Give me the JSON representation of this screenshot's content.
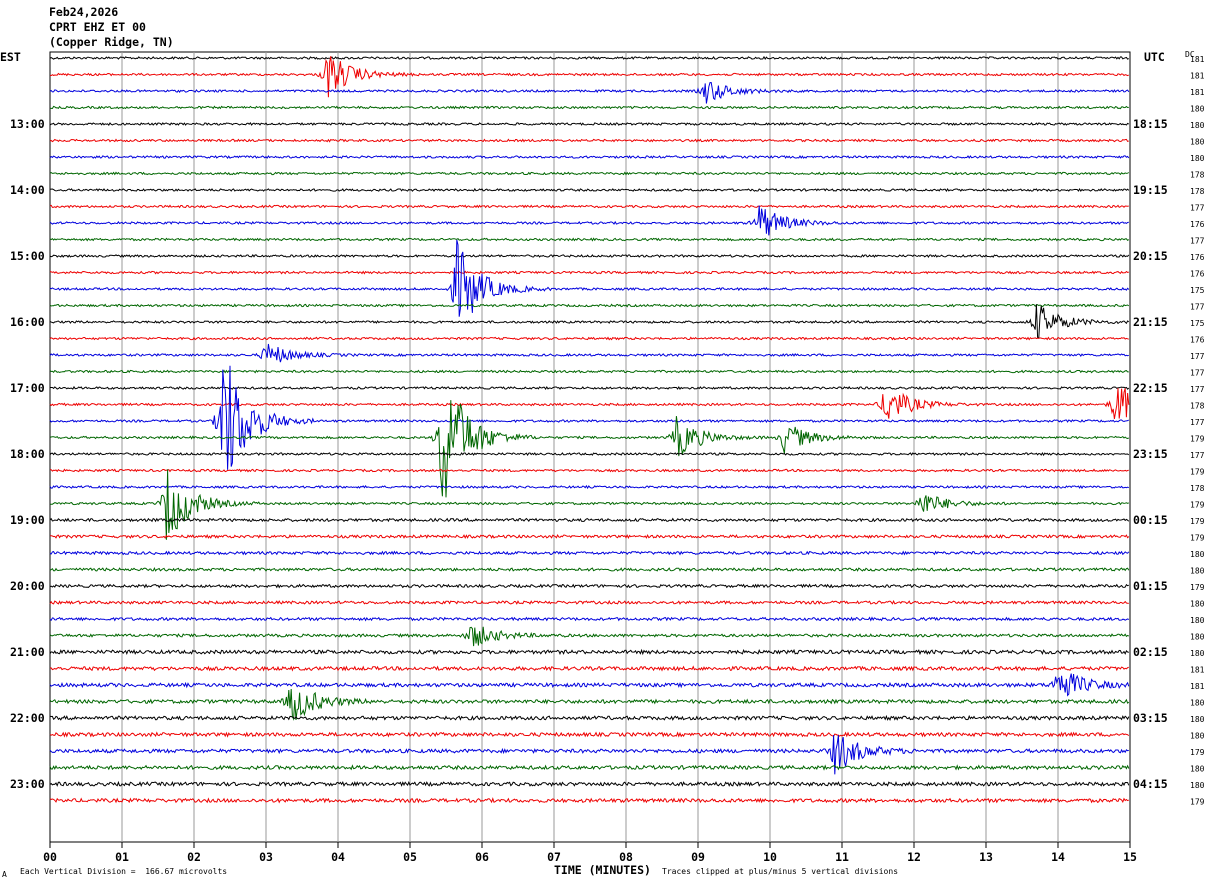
{
  "header": {
    "date": "Feb24,2026",
    "station": "CPRT EHZ ET 00",
    "location": "(Copper Ridge, TN)"
  },
  "left_tz": "EST",
  "right_tz": "UTC",
  "dc_label": "DC",
  "footer": {
    "division_note": "Each Vertical Division =  166.67 microvolts",
    "clip_note": "Traces clipped at plus/minus 5 vertical divisions",
    "x_axis_title": "TIME (MINUTES)",
    "corner_mark": "A"
  },
  "colors": {
    "cycle": [
      "#000000",
      "#ee0000",
      "#0000dd",
      "#006600"
    ],
    "grid": "#9a9a9a"
  },
  "chart_data": {
    "type": "line",
    "title": "CPRT EHZ ET 00 (Copper Ridge, TN)",
    "xlabel": "TIME (MINUTES)",
    "xlim": [
      0,
      15
    ],
    "x_ticks": [
      "00",
      "01",
      "02",
      "03",
      "04",
      "05",
      "06",
      "07",
      "08",
      "09",
      "10",
      "11",
      "12",
      "13",
      "14",
      "15"
    ],
    "est_hour_labels": [
      "13:00",
      "14:00",
      "15:00",
      "16:00",
      "17:00",
      "18:00",
      "19:00",
      "20:00",
      "21:00",
      "22:00",
      "23:00"
    ],
    "utc_hour_labels": [
      "18:15",
      "19:15",
      "20:15",
      "21:15",
      "22:15",
      "23:15",
      "00:15",
      "01:15",
      "02:15",
      "03:15",
      "04:15"
    ],
    "dc_offsets": [
      181,
      181,
      181,
      180,
      180,
      180,
      180,
      178,
      178,
      177,
      176,
      177,
      176,
      176,
      175,
      177,
      175,
      176,
      177,
      177,
      177,
      178,
      177,
      179,
      177,
      179,
      178,
      179,
      179,
      179,
      180,
      180,
      179,
      180,
      180,
      180,
      180,
      181,
      181,
      180,
      180,
      180,
      179,
      180,
      180,
      179
    ],
    "events": [
      {
        "trace": 1,
        "minute": 3.85,
        "amp": 1.5
      },
      {
        "trace": 2,
        "minute": 9.1,
        "amp": 0.8
      },
      {
        "trace": 10,
        "minute": 9.85,
        "amp": 1.2
      },
      {
        "trace": 14,
        "minute": 5.65,
        "amp": 3.0
      },
      {
        "trace": 16,
        "minute": 13.7,
        "amp": 1.2
      },
      {
        "trace": 18,
        "minute": 3.0,
        "amp": 0.8
      },
      {
        "trace": 21,
        "minute": 11.6,
        "amp": 1.3
      },
      {
        "trace": 21,
        "minute": 14.8,
        "amp": 1.5
      },
      {
        "trace": 22,
        "minute": 2.4,
        "amp": 5.0
      },
      {
        "trace": 23,
        "minute": 5.45,
        "amp": 5.0
      },
      {
        "trace": 23,
        "minute": 8.7,
        "amp": 1.3
      },
      {
        "trace": 23,
        "minute": 10.2,
        "amp": 1.0
      },
      {
        "trace": 27,
        "minute": 1.62,
        "amp": 2.5
      },
      {
        "trace": 27,
        "minute": 12.1,
        "amp": 0.8
      },
      {
        "trace": 35,
        "minute": 5.85,
        "amp": 0.8
      },
      {
        "trace": 38,
        "minute": 14.0,
        "amp": 1.2
      },
      {
        "trace": 39,
        "minute": 3.35,
        "amp": 1.4
      },
      {
        "trace": 42,
        "minute": 10.9,
        "amp": 1.4
      }
    ]
  }
}
